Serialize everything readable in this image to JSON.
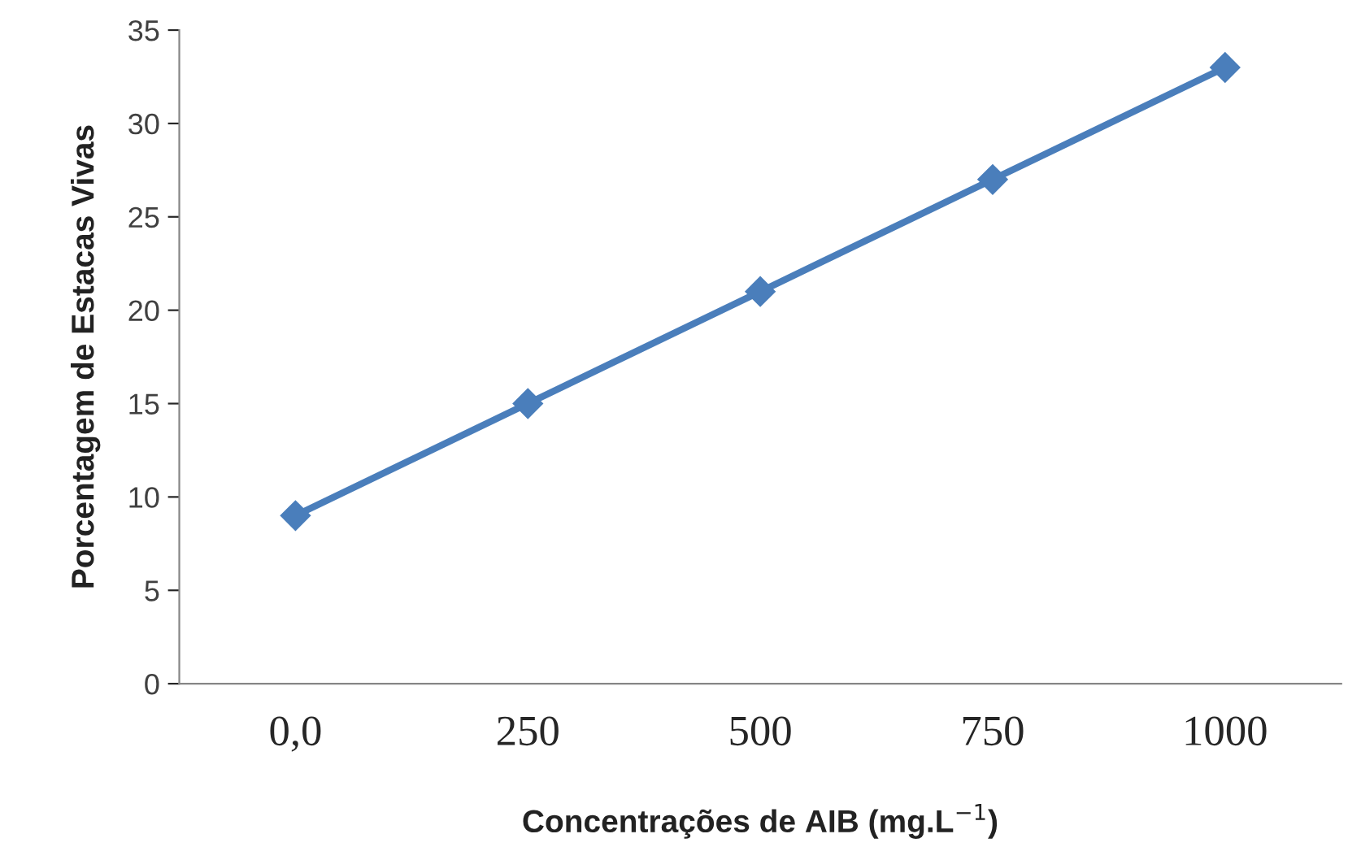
{
  "chart_data": {
    "type": "line",
    "categories": [
      "0,0",
      "250",
      "500",
      "750",
      "1000"
    ],
    "series": [
      {
        "color": "#4a7ebb",
        "values": [
          9,
          15,
          21,
          27,
          33
        ]
      }
    ],
    "xlabel": "Concentrações de AIB (mg.L$^{−1}$)",
    "ylabel": "Porcentagem de Estacas Vivas",
    "ylim": [
      0,
      35
    ],
    "yticks": [
      0,
      5,
      10,
      15,
      20,
      25,
      30,
      35
    ],
    "grid": false,
    "legend": false,
    "marker": "diamond",
    "line_style": "solid"
  }
}
